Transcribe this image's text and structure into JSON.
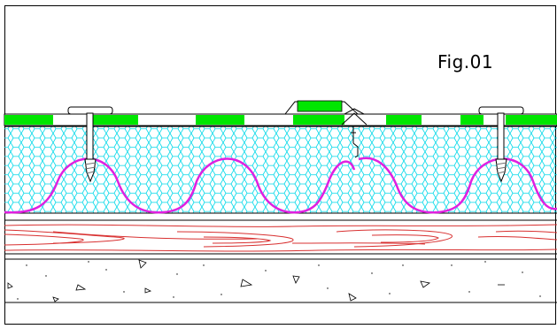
{
  "figure": {
    "label": "Fig.01"
  },
  "colors": {
    "membrane_green": "#00e600",
    "insulation_cyan": "#00d8e8",
    "corrugation_magenta": "#e020e0",
    "wood_red": "#d83030",
    "outline": "#000000",
    "screw_gray": "#707070"
  },
  "icons": [
    "fastener-icon",
    "screw-icon",
    "aggregate-icon"
  ]
}
